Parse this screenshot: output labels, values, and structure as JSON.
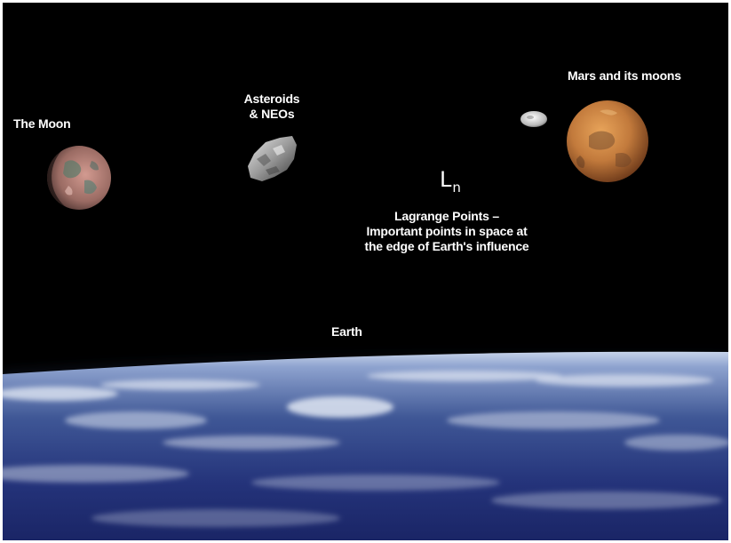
{
  "labels": {
    "moon": "The Moon",
    "asteroids": [
      "Asteroids",
      "& NEOs"
    ],
    "mars": "Mars and its moons",
    "lagrange_symbol": "L",
    "lagrange_subscript": "n",
    "lagrange_caption": [
      "Lagrange Points –",
      "Important points in space at",
      "the edge of Earth's influence"
    ],
    "earth": "Earth"
  },
  "colors": {
    "space": "#000000",
    "label": "#ffffff",
    "mars": "#c8823c",
    "moon": "#b07a6e",
    "earth_ocean": "#1c2a6a",
    "earth_clouds": "#dfe6f2"
  },
  "icons": {
    "moon": "moon-planet",
    "asteroid": "asteroid-rock",
    "mars": "mars-planet",
    "phobos": "small-moon",
    "earth": "earth-horizon"
  }
}
